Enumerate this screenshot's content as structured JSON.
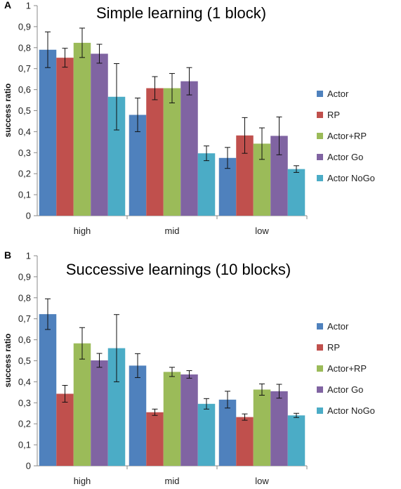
{
  "chart_data": [
    {
      "panel_label": "A",
      "type": "bar",
      "title": "Simple learning (1 block)",
      "ylabel": "success ratio",
      "xlabel": "",
      "ylim": [
        0,
        1
      ],
      "yticks": [
        "0",
        "0,1",
        "0,2",
        "0,3",
        "0,4",
        "0,5",
        "0,6",
        "0,7",
        "0,8",
        "0,9",
        "1"
      ],
      "categories": [
        "high",
        "mid",
        "low"
      ],
      "grid": false,
      "legend_position": "right",
      "series": [
        {
          "name": "Actor",
          "color": "#4f81bd",
          "values": [
            0.79,
            0.48,
            0.275
          ],
          "errors": [
            0.085,
            0.08,
            0.05
          ]
        },
        {
          "name": "RP",
          "color": "#c0504d",
          "values": [
            0.752,
            0.607,
            0.382
          ],
          "errors": [
            0.045,
            0.055,
            0.085
          ]
        },
        {
          "name": "Actor+RP",
          "color": "#9bbb59",
          "values": [
            0.823,
            0.607,
            0.343
          ],
          "errors": [
            0.07,
            0.07,
            0.075
          ]
        },
        {
          "name": "Actor Go",
          "color": "#8064a2",
          "values": [
            0.771,
            0.64,
            0.38
          ],
          "errors": [
            0.045,
            0.065,
            0.09
          ]
        },
        {
          "name": "Actor NoGo",
          "color": "#4bacc6",
          "values": [
            0.566,
            0.297,
            0.222
          ],
          "errors": [
            0.158,
            0.035,
            0.016
          ]
        }
      ]
    },
    {
      "panel_label": "B",
      "type": "bar",
      "title": "Successive learnings (10 blocks)",
      "ylabel": "success ratio",
      "xlabel": "",
      "ylim": [
        0,
        1
      ],
      "yticks": [
        "0",
        "0,1",
        "0,2",
        "0,3",
        "0,4",
        "0,5",
        "0,6",
        "0,7",
        "0,8",
        "0,9",
        "1"
      ],
      "categories": [
        "high",
        "mid",
        "low"
      ],
      "grid": false,
      "legend_position": "right",
      "series": [
        {
          "name": "Actor",
          "color": "#4f81bd",
          "values": [
            0.722,
            0.477,
            0.315
          ],
          "errors": [
            0.073,
            0.057,
            0.04
          ]
        },
        {
          "name": "RP",
          "color": "#c0504d",
          "values": [
            0.343,
            0.255,
            0.232
          ],
          "errors": [
            0.04,
            0.015,
            0.015
          ]
        },
        {
          "name": "Actor+RP",
          "color": "#9bbb59",
          "values": [
            0.583,
            0.447,
            0.363
          ],
          "errors": [
            0.075,
            0.022,
            0.027
          ]
        },
        {
          "name": "Actor Go",
          "color": "#8064a2",
          "values": [
            0.502,
            0.435,
            0.355
          ],
          "errors": [
            0.033,
            0.018,
            0.033
          ]
        },
        {
          "name": "Actor NoGo",
          "color": "#4bacc6",
          "values": [
            0.56,
            0.295,
            0.24
          ],
          "errors": [
            0.16,
            0.025,
            0.01
          ]
        }
      ]
    }
  ]
}
